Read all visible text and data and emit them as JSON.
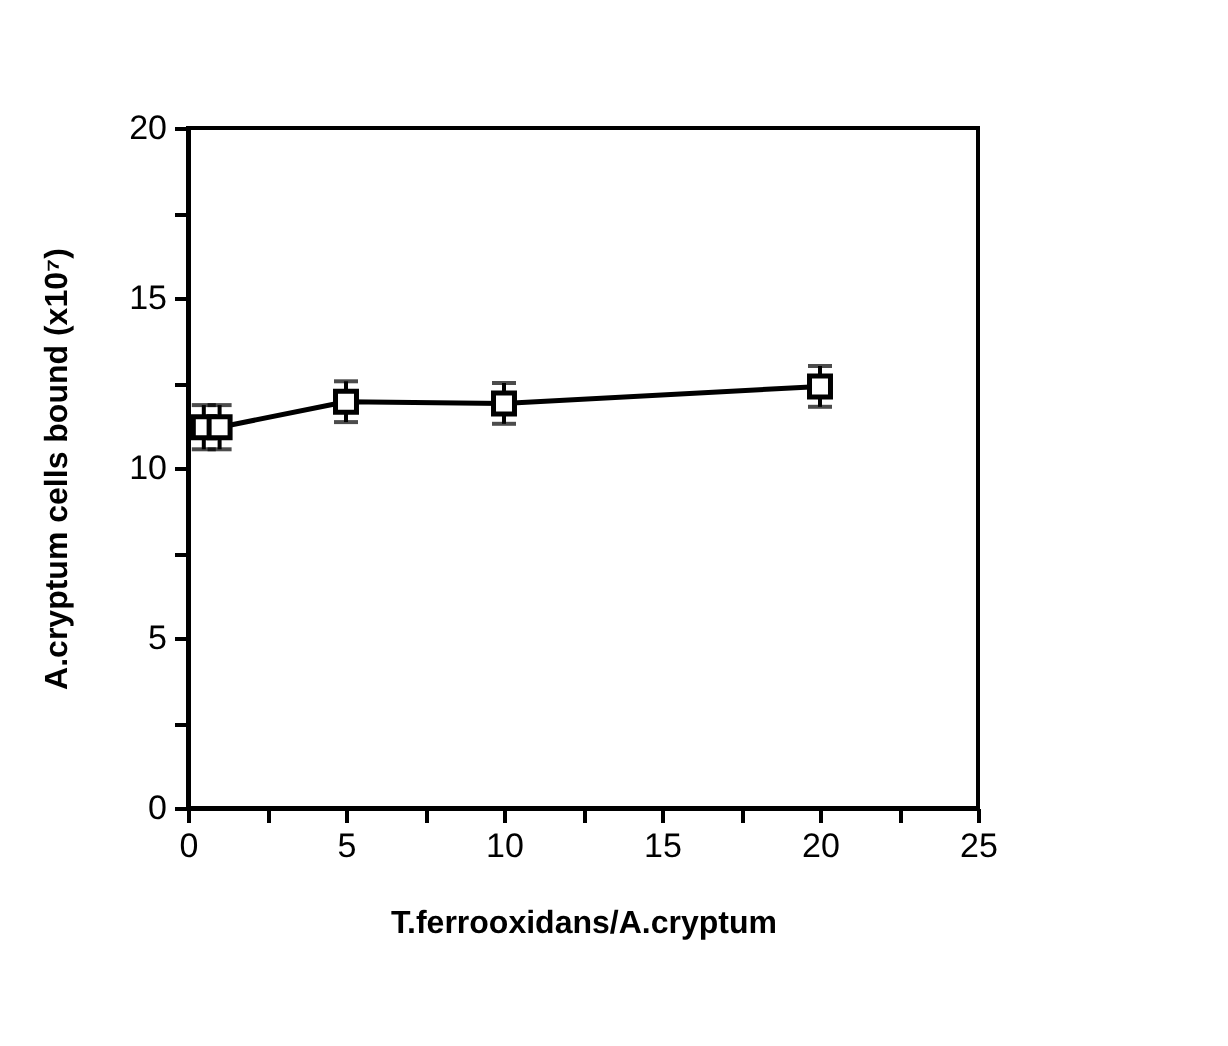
{
  "chart_data": {
    "type": "line",
    "xlabel": "T.ferrooxidans/A.cryptum",
    "ylabel": "A.cryptum cells bound (x10⁷)",
    "x": [
      0.5,
      1,
      5,
      10,
      20
    ],
    "values": [
      11.2,
      11.2,
      11.95,
      11.9,
      12.4
    ],
    "errors": [
      0.65,
      0.65,
      0.6,
      0.6,
      0.6
    ],
    "color": "#000000",
    "marker": "square",
    "line_style": "solid",
    "grid": false,
    "xlim": [
      0,
      25
    ],
    "xticks": [
      0,
      {
        "value": 2.5,
        "label": null
      },
      5,
      {
        "value": 7.5,
        "label": null
      },
      10,
      {
        "value": 12.5,
        "label": null
      },
      15,
      {
        "value": 17.5,
        "label": null
      },
      20,
      {
        "value": 22.5,
        "label": null
      },
      25
    ],
    "ylim": [
      0,
      20
    ],
    "yticks": [
      0,
      {
        "value": 2.5,
        "label": null
      },
      5,
      {
        "value": 7.5,
        "label": null
      },
      10,
      {
        "value": 12.5,
        "label": null
      },
      15,
      {
        "value": 17.5,
        "label": null
      },
      20
    ]
  }
}
